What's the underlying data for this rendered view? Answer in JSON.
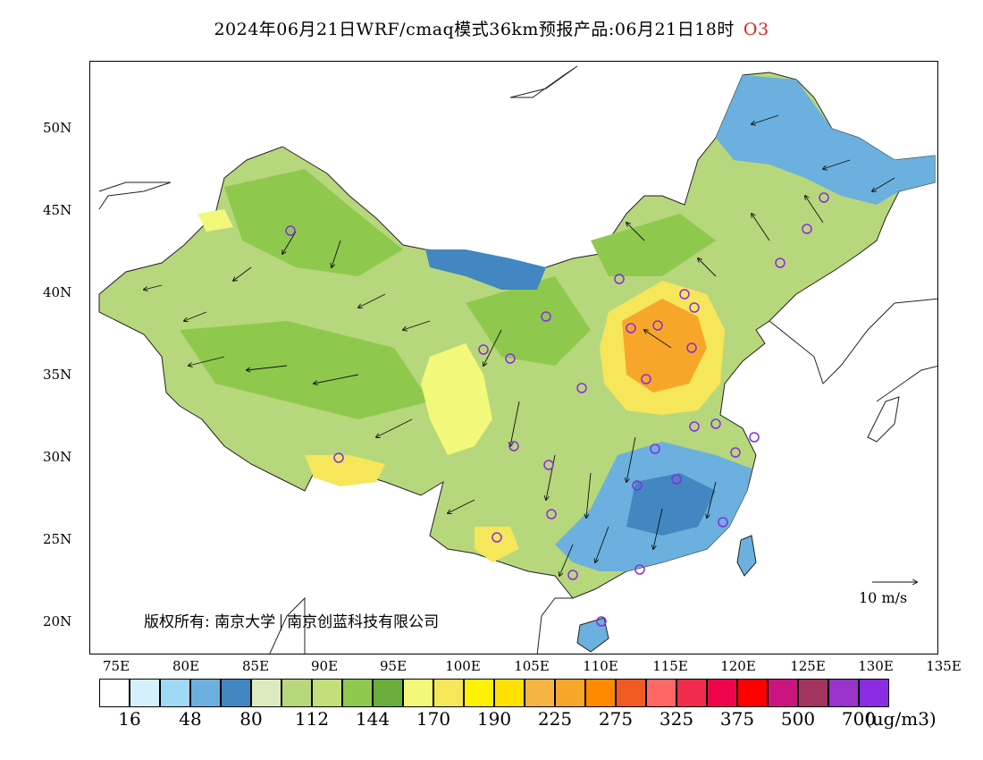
{
  "title": {
    "main": "2024年06月21日WRF/cmaq模式36km预报产品:06月21日18时",
    "species": "O3"
  },
  "map": {
    "lat_labels": [
      "50N",
      "45N",
      "40N",
      "35N",
      "30N",
      "25N",
      "20N"
    ],
    "lon_labels": [
      "75E",
      "80E",
      "85E",
      "90E",
      "95E",
      "100E",
      "105E",
      "110E",
      "115E",
      "120E",
      "125E",
      "130E",
      "135E"
    ],
    "copyright": {
      "prefix": "版权所有:",
      "org1": "南京大学",
      "org2": "南京创蓝科技有限公司"
    },
    "wind_reference": "10 m/s"
  },
  "legend": {
    "colors": [
      "#ffffff",
      "#d5effb",
      "#9fd9f5",
      "#6bb0de",
      "#4287c1",
      "#dcebc0",
      "#b7d77c",
      "#c2e07a",
      "#8ec94d",
      "#6aad3a",
      "#f2f879",
      "#f5e65a",
      "#fff200",
      "#ffe100",
      "#f7b441",
      "#f8a62a",
      "#ff8a00",
      "#f15a22",
      "#ff6666",
      "#f02b4c",
      "#f0044c",
      "#ff0000",
      "#cc147f",
      "#a3335f",
      "#9933cc",
      "#8b2be2"
    ],
    "labels": [
      "16",
      "48",
      "80",
      "112",
      "144",
      "170",
      "190",
      "225",
      "275",
      "325",
      "375",
      "500",
      "700"
    ],
    "unit": "(ug/m3)"
  }
}
